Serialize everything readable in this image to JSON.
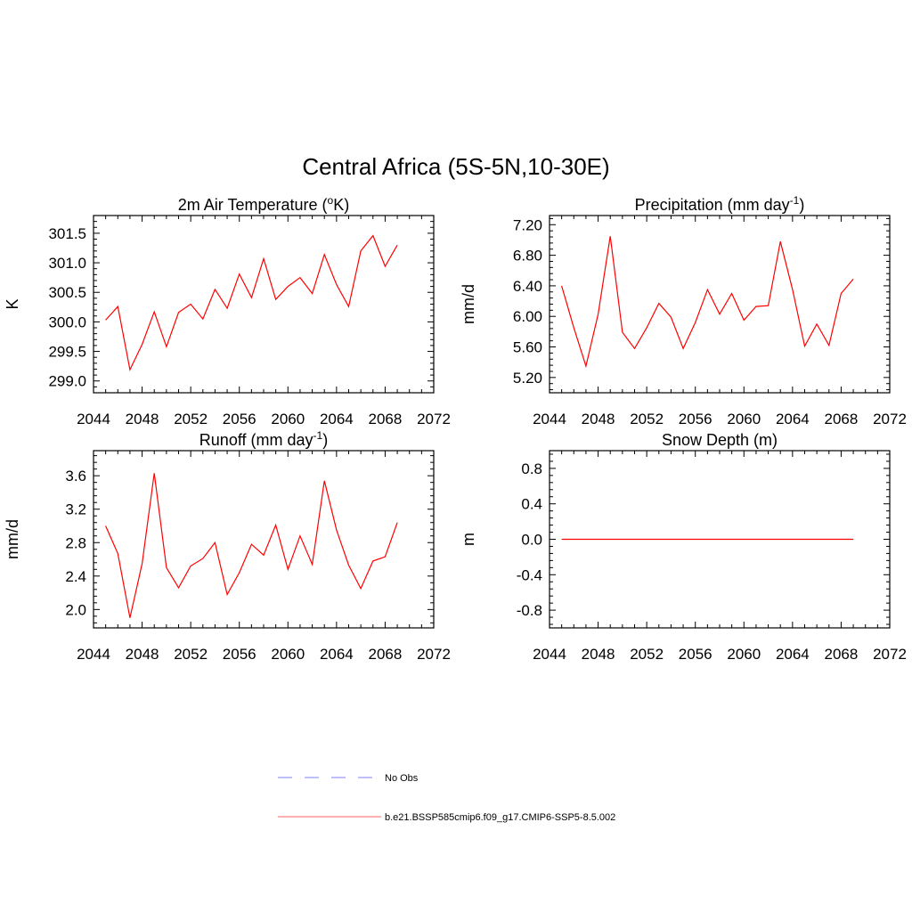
{
  "title": "Central Africa (5S-5N,10-30E)",
  "colors": {
    "model": "#ff0000",
    "obs": "#9999ff",
    "legend_model": "#ff8080",
    "axis": "#000000"
  },
  "chart_data": [
    {
      "type": "line",
      "title": "2m Air Temperature (",
      "title_sup": "o",
      "title_suffix": "K)",
      "ylabel": "K",
      "xlim": [
        2044,
        2072
      ],
      "ylim": [
        298.8,
        301.8
      ],
      "xticks": [
        "2044",
        "2048",
        "2052",
        "2056",
        "2060",
        "2064",
        "2068",
        "2072"
      ],
      "yticks": [
        "299.0",
        "299.5",
        "300.0",
        "300.5",
        "301.0",
        "301.5"
      ],
      "series": [
        {
          "x": [
            2045,
            2046,
            2047,
            2048,
            2049,
            2050,
            2051,
            2052,
            2053,
            2054,
            2055,
            2056,
            2057,
            2058,
            2059,
            2060,
            2061,
            2062,
            2063,
            2064,
            2065,
            2066,
            2067,
            2068,
            2069
          ],
          "y": [
            300.03,
            300.26,
            299.19,
            299.62,
            300.17,
            299.58,
            300.16,
            300.3,
            300.05,
            300.55,
            300.23,
            300.81,
            300.41,
            301.07,
            300.38,
            300.6,
            300.75,
            300.48,
            301.14,
            300.63,
            300.26,
            301.2,
            301.46,
            300.94,
            301.3
          ]
        }
      ]
    },
    {
      "type": "line",
      "title": "Precipitation (mm day",
      "title_sup": "-1",
      "title_suffix": ")",
      "ylabel": "mm/d",
      "xlim": [
        2044,
        2072
      ],
      "ylim": [
        5.0,
        7.32
      ],
      "xticks": [
        "2044",
        "2048",
        "2052",
        "2056",
        "2060",
        "2064",
        "2068",
        "2072"
      ],
      "yticks": [
        "5.20",
        "5.60",
        "6.00",
        "6.40",
        "6.80",
        "7.20"
      ],
      "series": [
        {
          "x": [
            2045,
            2046,
            2047,
            2048,
            2049,
            2050,
            2051,
            2052,
            2053,
            2054,
            2055,
            2056,
            2057,
            2058,
            2059,
            2060,
            2061,
            2062,
            2063,
            2064,
            2065,
            2066,
            2067,
            2068,
            2069
          ],
          "y": [
            6.4,
            5.85,
            5.35,
            6.03,
            7.05,
            5.79,
            5.58,
            5.85,
            6.17,
            5.99,
            5.58,
            5.92,
            6.35,
            6.03,
            6.3,
            5.95,
            6.13,
            6.14,
            6.98,
            6.35,
            5.61,
            5.9,
            5.62,
            6.3,
            6.49
          ]
        }
      ]
    },
    {
      "type": "line",
      "title": "Runoff (mm day",
      "title_sup": "-1",
      "title_suffix": ")",
      "ylabel": "mm/d",
      "xlim": [
        2044,
        2072
      ],
      "ylim": [
        1.78,
        3.9
      ],
      "xticks": [
        "2044",
        "2048",
        "2052",
        "2056",
        "2060",
        "2064",
        "2068",
        "2072"
      ],
      "yticks": [
        "2.0",
        "2.4",
        "2.8",
        "3.2",
        "3.6"
      ],
      "series": [
        {
          "x": [
            2045,
            2046,
            2047,
            2048,
            2049,
            2050,
            2051,
            2052,
            2053,
            2054,
            2055,
            2056,
            2057,
            2058,
            2059,
            2060,
            2061,
            2062,
            2063,
            2064,
            2065,
            2066,
            2067,
            2068,
            2069
          ],
          "y": [
            3.0,
            2.67,
            1.9,
            2.55,
            3.63,
            2.5,
            2.26,
            2.52,
            2.61,
            2.8,
            2.18,
            2.44,
            2.78,
            2.65,
            3.01,
            2.48,
            2.88,
            2.54,
            3.54,
            2.95,
            2.53,
            2.25,
            2.58,
            2.63,
            3.04
          ]
        }
      ]
    },
    {
      "type": "line",
      "title": "Snow Depth (m)",
      "title_sup": "",
      "title_suffix": "",
      "ylabel": "m",
      "xlim": [
        2044,
        2072
      ],
      "ylim": [
        -1.0,
        1.0
      ],
      "xticks": [
        "2044",
        "2048",
        "2052",
        "2056",
        "2060",
        "2064",
        "2068",
        "2072"
      ],
      "yticks": [
        "-0.8",
        "-0.4",
        "0.0",
        "0.4",
        "0.8"
      ],
      "series": [
        {
          "x": [
            2045,
            2069
          ],
          "y": [
            0.0,
            0.0
          ]
        }
      ]
    }
  ],
  "legend": [
    {
      "label": "No Obs",
      "style": "dashed"
    },
    {
      "label": "b.e21.BSSP585cmip6.f09_g17.CMIP6-SSP5-8.5.002",
      "style": "solid"
    }
  ]
}
